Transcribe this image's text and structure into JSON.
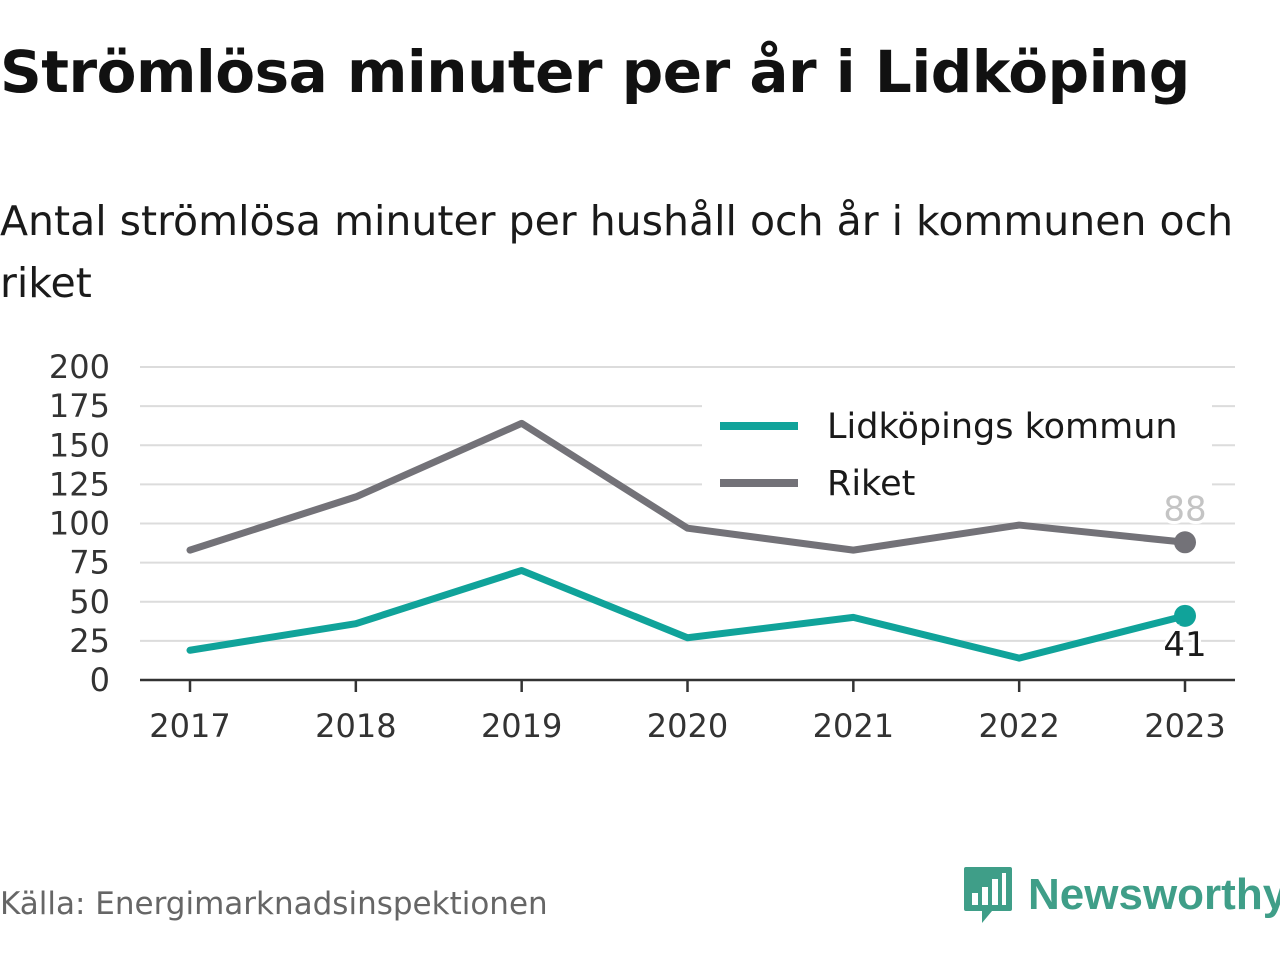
{
  "title": "Strömlösa minuter per år i Lidköping",
  "subtitle": "Antal strömlösa minuter per hushåll och år i kommunen och riket",
  "source": "Källa: Energimarknadsinspektionen",
  "brand": {
    "name": "Newsworthy",
    "icon": "newsworthy-logo-icon",
    "color": "#3f9e88"
  },
  "chart_data": {
    "type": "line",
    "x": [
      "2017",
      "2018",
      "2019",
      "2020",
      "2021",
      "2022",
      "2023"
    ],
    "ylim": [
      0,
      200
    ],
    "yticks": [
      0,
      25,
      50,
      75,
      100,
      125,
      150,
      175,
      200
    ],
    "grid": true,
    "legend_position": "top-right",
    "series": [
      {
        "name": "Lidköpings kommun",
        "color": "#10a39a",
        "values": [
          19,
          36,
          70,
          27,
          40,
          14,
          41
        ],
        "end_label": "41"
      },
      {
        "name": "Riket",
        "color": "#737278",
        "values": [
          83,
          117,
          164,
          97,
          83,
          99,
          88
        ],
        "end_label": "88"
      }
    ]
  }
}
